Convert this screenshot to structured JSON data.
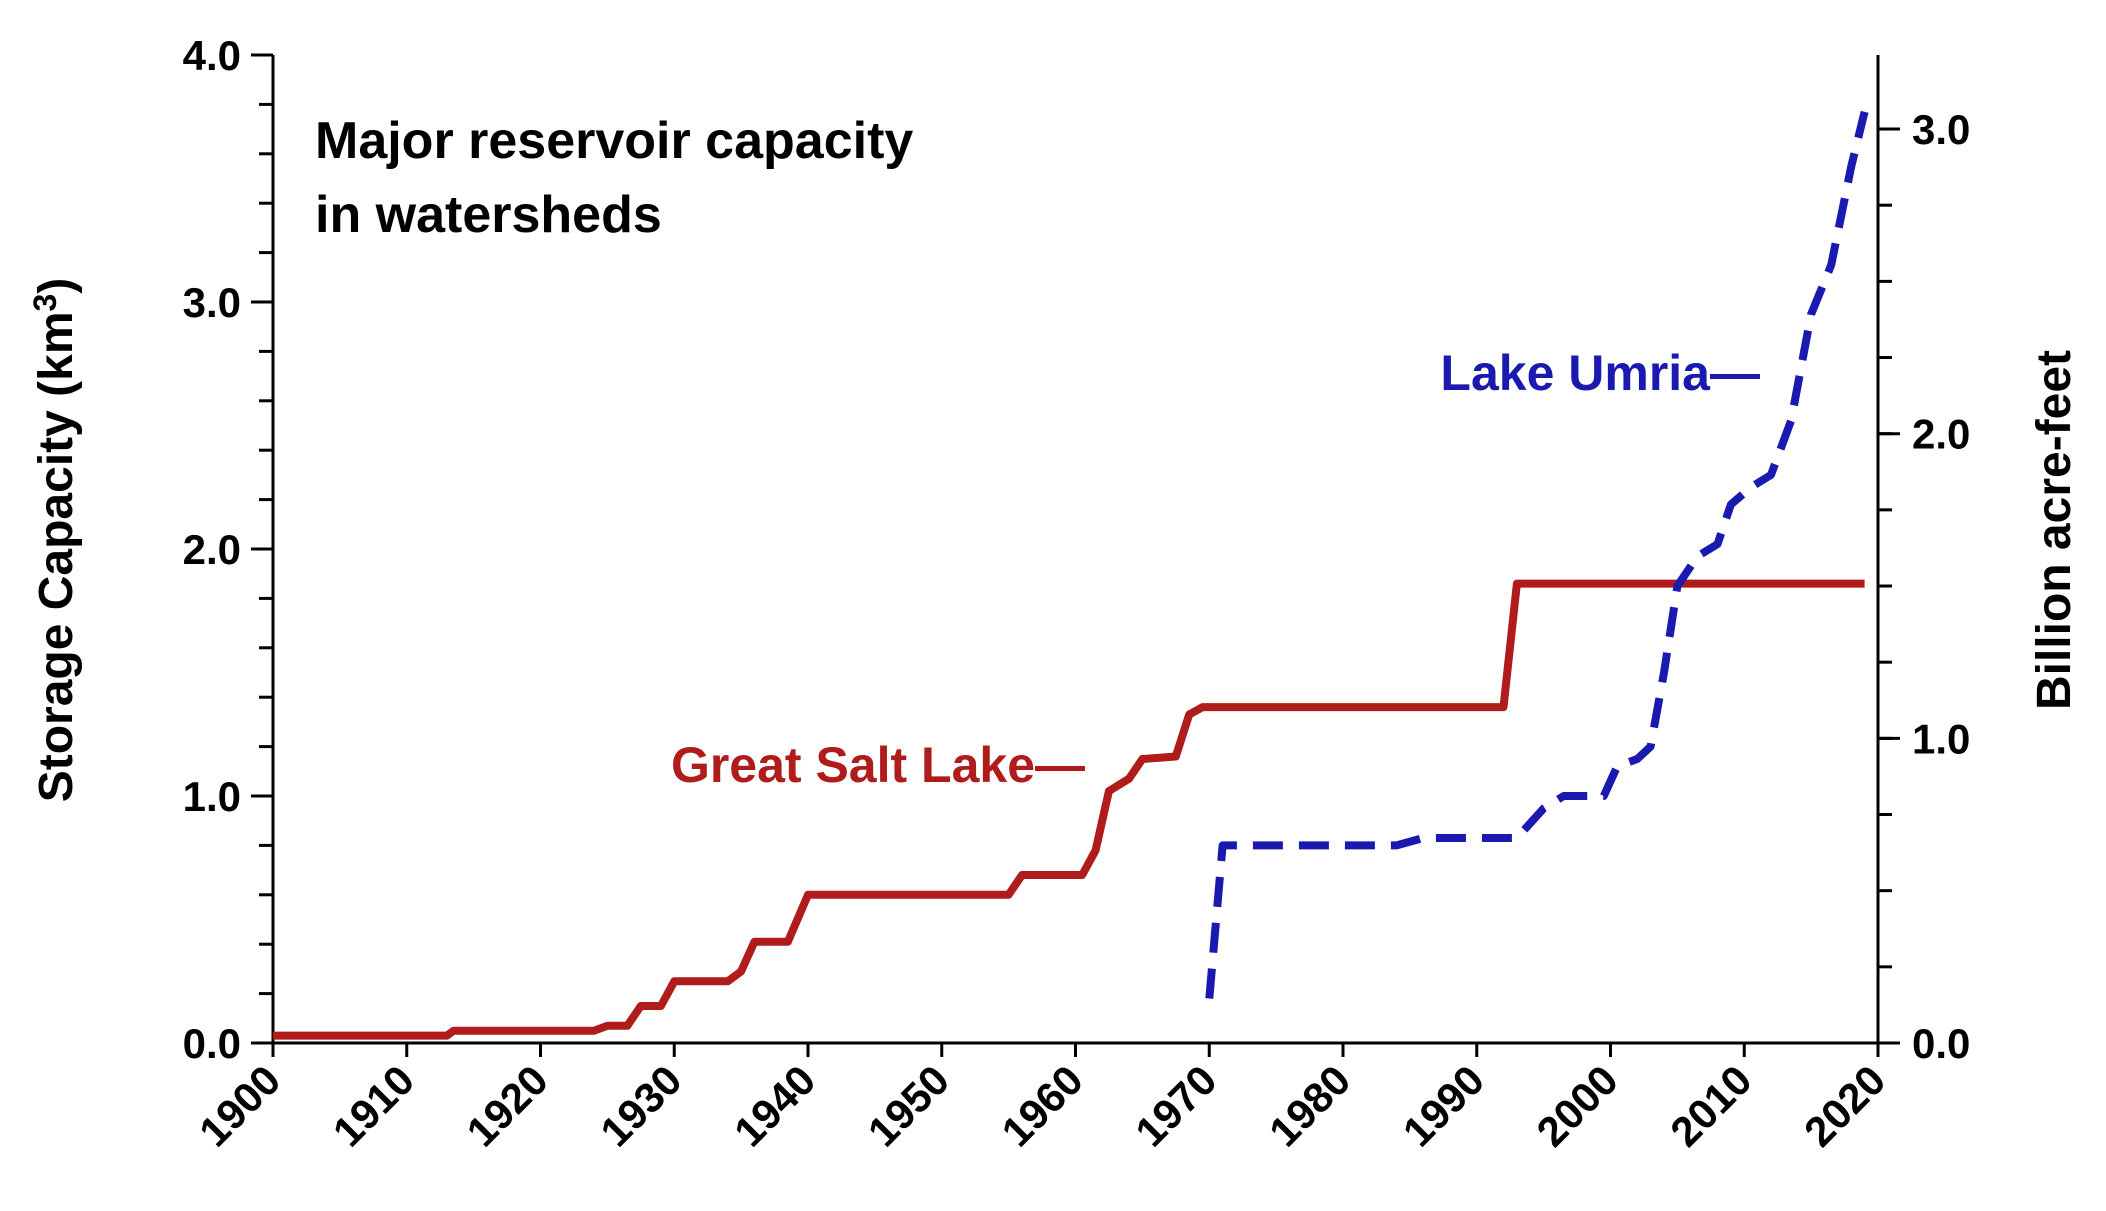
{
  "chart_data": {
    "type": "line",
    "title": "",
    "annotation": [
      "Major reservoir capacity",
      "in watersheds"
    ],
    "xlabel": "",
    "ylabel": "Storage Capacity  (km",
    "ylabel_superscript": "3",
    "ylabel_suffix": ")",
    "y2label": "Billion acre-feet",
    "xlim": [
      1900,
      2020
    ],
    "ylim": [
      0,
      4.0
    ],
    "y2lim": [
      0,
      3.243
    ],
    "x_ticks": [
      "1900",
      "1910",
      "1920",
      "1930",
      "1940",
      "1950",
      "1960",
      "1970",
      "1980",
      "1990",
      "2000",
      "2010",
      "2020"
    ],
    "y_ticks": [
      "0.0",
      "1.0",
      "2.0",
      "3.0",
      "4.0"
    ],
    "y2_ticks": [
      "0.0",
      "1.0",
      "2.0",
      "3.0"
    ],
    "grid": false,
    "series": [
      {
        "name": "Great Salt Lake",
        "label_text": "Great Salt Lake—",
        "color": "#b01c1c",
        "style": "solid",
        "points": [
          [
            1900,
            0.03
          ],
          [
            1913,
            0.03
          ],
          [
            1913.5,
            0.05
          ],
          [
            1924,
            0.05
          ],
          [
            1925,
            0.07
          ],
          [
            1926.5,
            0.07
          ],
          [
            1927.5,
            0.15
          ],
          [
            1929,
            0.15
          ],
          [
            1930,
            0.25
          ],
          [
            1934,
            0.25
          ],
          [
            1935,
            0.29
          ],
          [
            1936,
            0.41
          ],
          [
            1938.5,
            0.41
          ],
          [
            1940,
            0.6
          ],
          [
            1955,
            0.6
          ],
          [
            1956,
            0.68
          ],
          [
            1960.5,
            0.68
          ],
          [
            1961.5,
            0.78
          ],
          [
            1962.5,
            1.02
          ],
          [
            1964,
            1.07
          ],
          [
            1965,
            1.15
          ],
          [
            1967.5,
            1.16
          ],
          [
            1968.5,
            1.33
          ],
          [
            1969.5,
            1.36
          ],
          [
            1992,
            1.36
          ],
          [
            1993,
            1.86
          ],
          [
            2019,
            1.86
          ]
        ]
      },
      {
        "name": "Lake Umria",
        "label_text": "Lake Umria—",
        "color": "#1a1ab0",
        "style": "dashed",
        "points": [
          [
            1970,
            0.18
          ],
          [
            1971,
            0.8
          ],
          [
            1972,
            0.8
          ],
          [
            1984,
            0.8
          ],
          [
            1986,
            0.83
          ],
          [
            1993,
            0.83
          ],
          [
            1995,
            0.95
          ],
          [
            1996.5,
            1.0
          ],
          [
            1999.5,
            1.0
          ],
          [
            2000.5,
            1.12
          ],
          [
            2002,
            1.15
          ],
          [
            2003,
            1.2
          ],
          [
            2004,
            1.5
          ],
          [
            2005,
            1.85
          ],
          [
            2006.5,
            1.97
          ],
          [
            2008,
            2.02
          ],
          [
            2009,
            2.18
          ],
          [
            2010.5,
            2.25
          ],
          [
            2012,
            2.3
          ],
          [
            2013.5,
            2.52
          ],
          [
            2015,
            2.95
          ],
          [
            2016.5,
            3.15
          ],
          [
            2018,
            3.55
          ],
          [
            2019,
            3.77
          ]
        ]
      }
    ]
  }
}
